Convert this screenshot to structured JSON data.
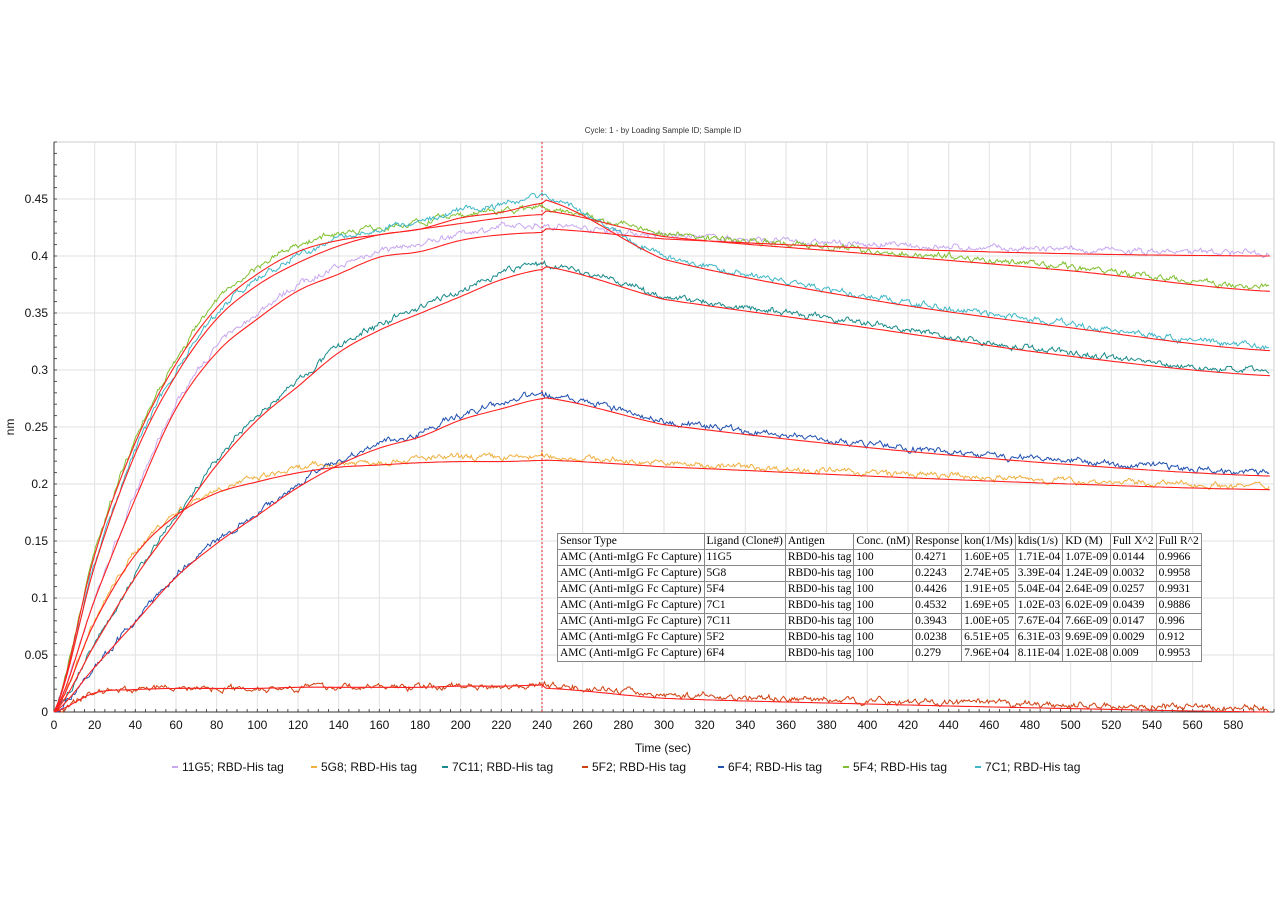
{
  "chart_data": {
    "type": "line",
    "title": "Cycle: 1 - by Loading Sample ID; Sample ID",
    "xlabel": "Time (sec)",
    "ylabel": "nm",
    "xlim": [
      0,
      600
    ],
    "ylim": [
      0,
      0.5
    ],
    "xticks": [
      0,
      20,
      40,
      60,
      80,
      100,
      120,
      140,
      160,
      180,
      200,
      220,
      240,
      260,
      280,
      300,
      320,
      340,
      360,
      380,
      400,
      420,
      440,
      460,
      480,
      500,
      520,
      540,
      560,
      580
    ],
    "yticks": [
      0,
      0.05,
      0.1,
      0.15,
      0.2,
      0.25,
      0.3,
      0.35,
      0.4,
      0.45
    ],
    "grid": true,
    "legend_position": "bottom",
    "marker_line": {
      "x": 240,
      "color": "#e02020"
    },
    "fit_color": "#ff2020",
    "x": [
      0,
      20,
      40,
      60,
      80,
      100,
      120,
      140,
      160,
      180,
      200,
      220,
      240,
      300,
      400,
      500,
      598
    ],
    "series": [
      {
        "name": "11G5; RBD-His tag",
        "color": "#c8a8f0",
        "values": [
          0,
          0.1,
          0.19,
          0.27,
          0.32,
          0.35,
          0.375,
          0.39,
          0.405,
          0.41,
          0.42,
          0.425,
          0.427,
          0.418,
          0.41,
          0.405,
          0.403
        ]
      },
      {
        "name": "5G8; RBD-His tag",
        "color": "#f0b040",
        "values": [
          0,
          0.08,
          0.14,
          0.175,
          0.195,
          0.205,
          0.213,
          0.218,
          0.22,
          0.222,
          0.223,
          0.223,
          0.224,
          0.218,
          0.21,
          0.203,
          0.198
        ]
      },
      {
        "name": "7C11; RBD-His tag",
        "color": "#1a8a8a",
        "values": [
          0,
          0.06,
          0.12,
          0.17,
          0.22,
          0.26,
          0.29,
          0.32,
          0.34,
          0.355,
          0.37,
          0.385,
          0.394,
          0.365,
          0.34,
          0.315,
          0.298
        ]
      },
      {
        "name": "5F2; RBD-His tag",
        "color": "#d04010",
        "values": [
          0,
          0.017,
          0.02,
          0.021,
          0.021,
          0.021,
          0.022,
          0.022,
          0.022,
          0.022,
          0.023,
          0.023,
          0.024,
          0.015,
          0.01,
          0.006,
          0.003
        ]
      },
      {
        "name": "6F4; RBD-His tag",
        "color": "#2050b0",
        "values": [
          0,
          0.04,
          0.08,
          0.12,
          0.15,
          0.175,
          0.2,
          0.22,
          0.235,
          0.245,
          0.26,
          0.27,
          0.279,
          0.255,
          0.235,
          0.22,
          0.21
        ]
      },
      {
        "name": "5F4; RBD-His tag",
        "color": "#80c030",
        "values": [
          0,
          0.14,
          0.24,
          0.31,
          0.36,
          0.39,
          0.41,
          0.42,
          0.425,
          0.43,
          0.435,
          0.44,
          0.443,
          0.42,
          0.405,
          0.39,
          0.372
        ]
      },
      {
        "name": "7C1; RBD-His tag",
        "color": "#40b8c8",
        "values": [
          0,
          0.13,
          0.23,
          0.3,
          0.35,
          0.38,
          0.4,
          0.415,
          0.425,
          0.43,
          0.44,
          0.445,
          0.453,
          0.4,
          0.365,
          0.34,
          0.32
        ]
      }
    ],
    "table": {
      "headers": [
        "Sensor Type",
        "Ligand (Clone#)",
        "Antigen",
        "Conc. (nM)",
        "Response",
        "kon(1/Ms)",
        "kdis(1/s)",
        "KD (M)",
        "Full X^2",
        "Full R^2"
      ],
      "rows": [
        [
          "AMC (Anti-mIgG Fc Capture)",
          "11G5",
          "RBD0-his tag",
          "100",
          "0.4271",
          "1.60E+05",
          "1.71E-04",
          "1.07E-09",
          "0.0144",
          "0.9966"
        ],
        [
          "AMC (Anti-mIgG Fc Capture)",
          "5G8",
          "RBD0-his tag",
          "100",
          "0.2243",
          "2.74E+05",
          "3.39E-04",
          "1.24E-09",
          "0.0032",
          "0.9958"
        ],
        [
          "AMC (Anti-mIgG Fc Capture)",
          "5F4",
          "RBD0-his tag",
          "100",
          "0.4426",
          "1.91E+05",
          "5.04E-04",
          "2.64E-09",
          "0.0257",
          "0.9931"
        ],
        [
          "AMC (Anti-mIgG Fc Capture)",
          "7C1",
          "RBD0-his tag",
          "100",
          "0.4532",
          "1.69E+05",
          "1.02E-03",
          "6.02E-09",
          "0.0439",
          "0.9886"
        ],
        [
          "AMC (Anti-mIgG Fc Capture)",
          "7C11",
          "RBD0-his tag",
          "100",
          "0.3943",
          "1.00E+05",
          "7.67E-04",
          "7.66E-09",
          "0.0147",
          "0.996"
        ],
        [
          "AMC (Anti-mIgG Fc Capture)",
          "5F2",
          "RBD0-his tag",
          "100",
          "0.0238",
          "6.51E+05",
          "6.31E-03",
          "9.69E-09",
          "0.0029",
          "0.912"
        ],
        [
          "AMC (Anti-mIgG Fc Capture)",
          "6F4",
          "RBD0-his tag",
          "100",
          "0.279",
          "7.96E+04",
          "8.11E-04",
          "1.02E-08",
          "0.009",
          "0.9953"
        ]
      ]
    }
  }
}
